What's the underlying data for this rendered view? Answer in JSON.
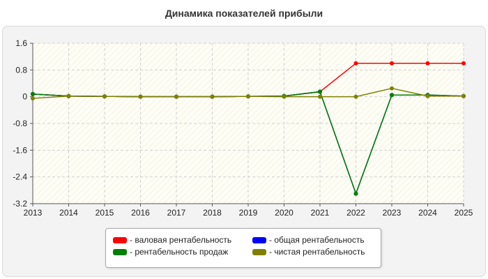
{
  "title": "Динамика показателей прибыли",
  "chart_data": {
    "type": "line",
    "title": "Динамика показателей прибыли",
    "xlabel": "",
    "ylabel": "",
    "x": [
      2013,
      2014,
      2015,
      2016,
      2017,
      2018,
      2019,
      2020,
      2021,
      2022,
      2023,
      2024,
      2025
    ],
    "ylim": [
      -3.2,
      1.6
    ],
    "yticks": [
      1.6,
      0.8,
      0,
      -0.8,
      -1.6,
      -2.4,
      -3.2
    ],
    "yticklabels": [
      "1.6",
      "0.8",
      "0",
      "-0.8",
      "-1.6",
      "-2.4",
      "-3.2"
    ],
    "xticklabels": [
      "2013",
      "2014",
      "2015",
      "2016",
      "2017",
      "2018",
      "2019",
      "2020",
      "2021",
      "2022",
      "2023",
      "2024",
      "2025"
    ],
    "grid": true,
    "legend_position": "bottom",
    "series": [
      {
        "name": "- валовая рентабельность",
        "color": "#ff0000",
        "values": [
          0.08,
          0.02,
          0.01,
          0.0,
          0.0,
          0.0,
          0.01,
          0.02,
          0.15,
          1.0,
          1.0,
          1.0,
          1.0
        ]
      },
      {
        "name": "- общая рентабельность",
        "color": "#0000ff",
        "values": [
          0.08,
          0.02,
          0.01,
          0.0,
          0.0,
          0.0,
          0.01,
          0.02,
          0.15,
          -2.9,
          0.05,
          0.05,
          0.02
        ]
      },
      {
        "name": "- рентабельность продаж",
        "color": "#008000",
        "values": [
          0.08,
          0.02,
          0.01,
          0.0,
          0.0,
          0.0,
          0.01,
          0.02,
          0.15,
          -2.9,
          0.05,
          0.05,
          0.02
        ]
      },
      {
        "name": "- чистая рентабельность",
        "color": "#808000",
        "values": [
          -0.05,
          0.02,
          0.01,
          0.0,
          0.0,
          0.0,
          0.01,
          0.0,
          0.0,
          0.0,
          0.25,
          0.02,
          0.02
        ]
      }
    ]
  }
}
